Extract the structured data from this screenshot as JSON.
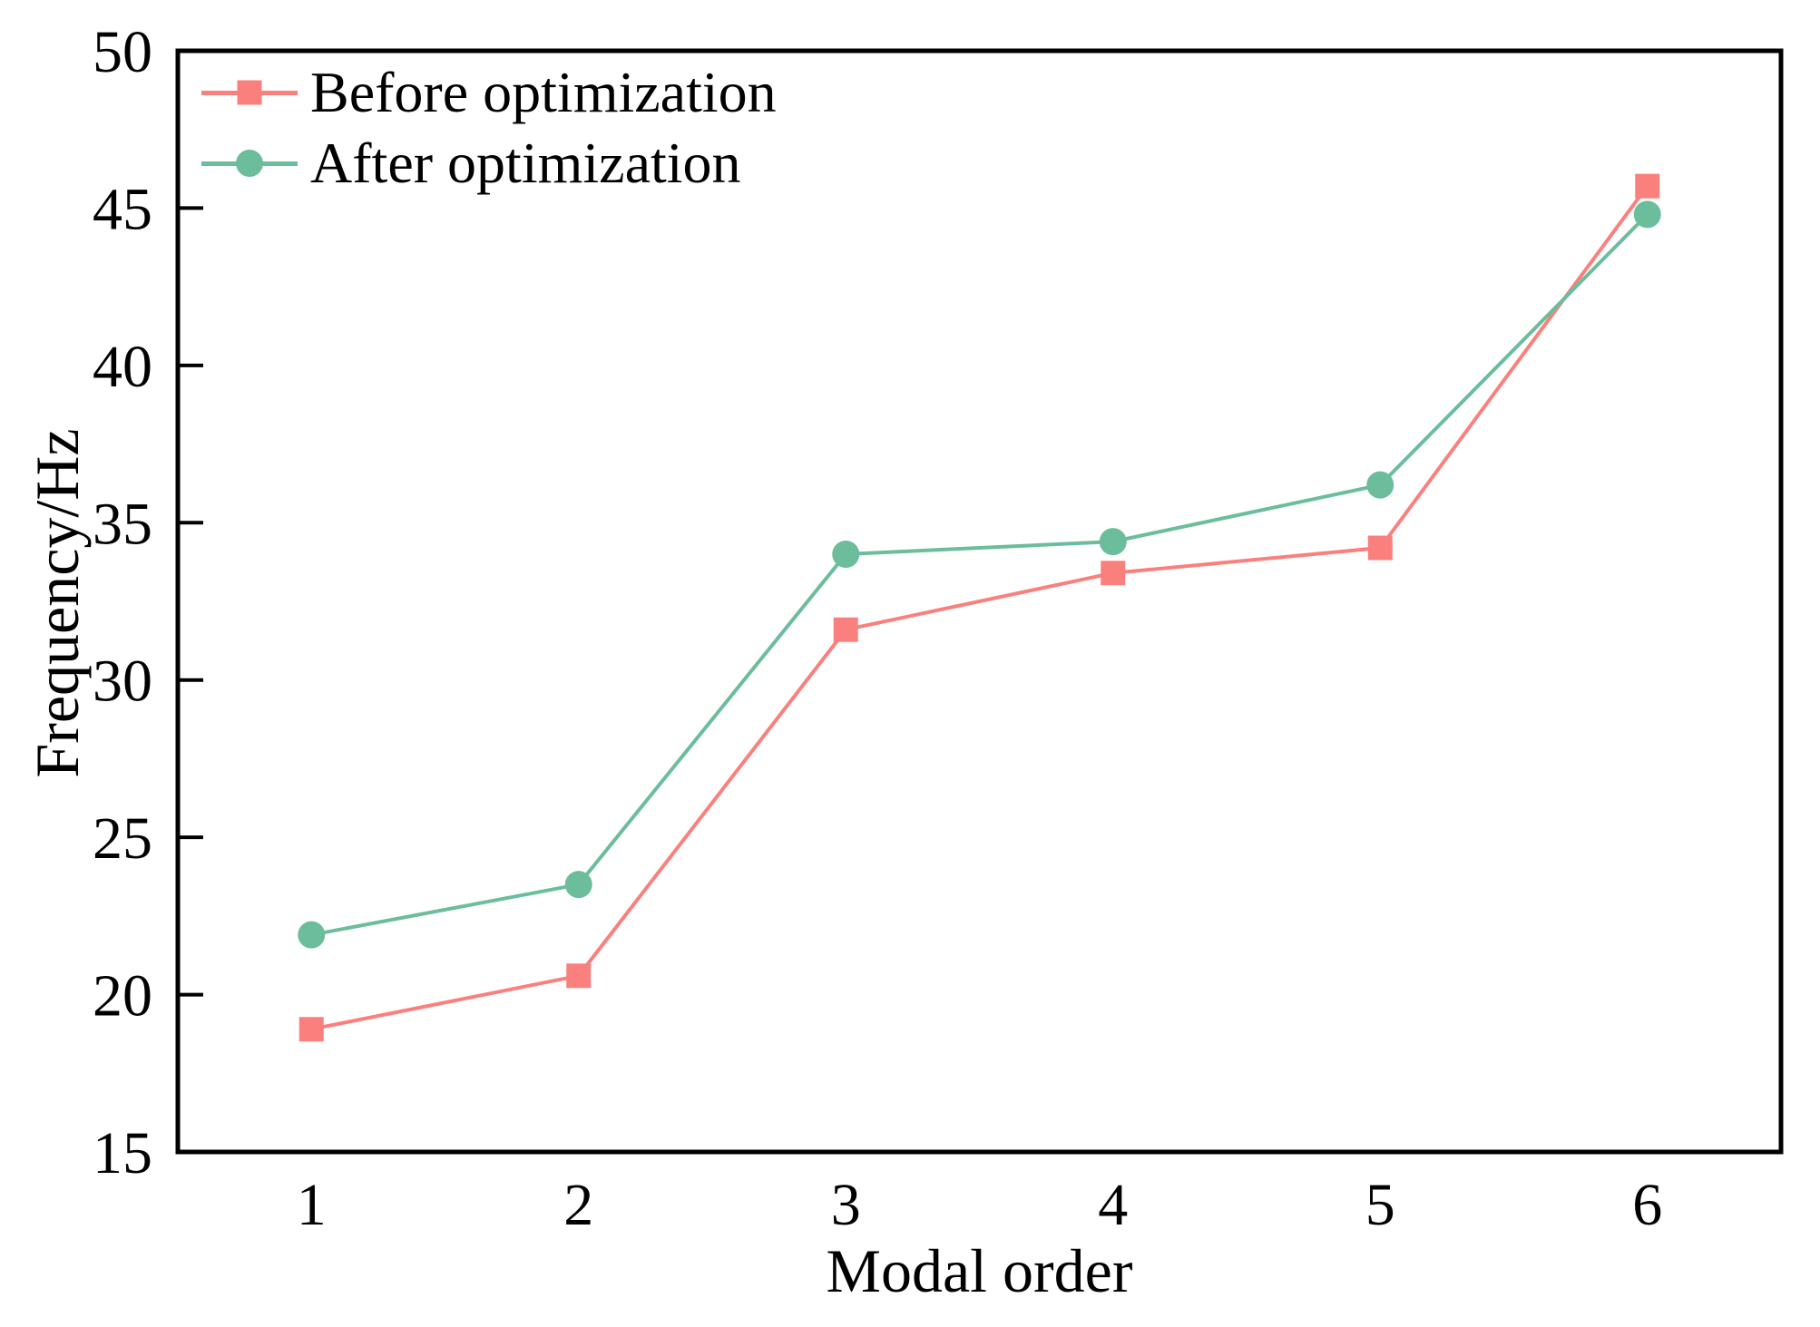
{
  "figure": {
    "background": "#ffffff",
    "frame_color": "#000000"
  },
  "chart_data": {
    "type": "line",
    "title": "",
    "xlabel": "Modal order",
    "ylabel": "Frequency/Hz",
    "x": [
      1,
      2,
      3,
      4,
      5,
      6
    ],
    "xlim": [
      0.5,
      6.5
    ],
    "ylim": [
      15,
      50
    ],
    "xticks": [
      1,
      2,
      3,
      4,
      5,
      6
    ],
    "yticks": [
      15,
      20,
      25,
      30,
      35,
      40,
      45,
      50
    ],
    "grid": false,
    "legend_position": "top-left-inside",
    "series": [
      {
        "name": "Before optimization",
        "color": "#fa807e",
        "marker": "square",
        "values": [
          18.9,
          20.6,
          31.6,
          33.4,
          34.2,
          45.7
        ]
      },
      {
        "name": "After optimization",
        "color": "#6bbd9b",
        "marker": "circle",
        "values": [
          21.9,
          23.5,
          34.0,
          34.4,
          36.2,
          44.8
        ]
      }
    ]
  }
}
